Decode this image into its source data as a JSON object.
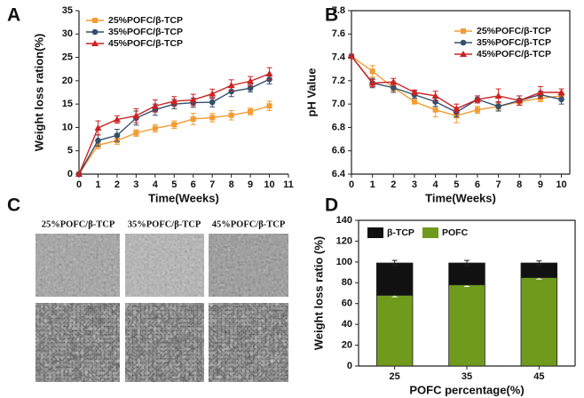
{
  "chart_data": [
    {
      "type": "line",
      "label": "A",
      "xlabel": "Time(Weeks)",
      "ylabel": "Weight loss ration(%)",
      "x": [
        0,
        1,
        2,
        3,
        4,
        5,
        6,
        7,
        8,
        9,
        10
      ],
      "xlim": [
        0,
        11
      ],
      "xticks": [
        0,
        1,
        2,
        3,
        4,
        5,
        6,
        7,
        8,
        9,
        10,
        11
      ],
      "ylim": [
        0,
        35
      ],
      "yticks": [
        0,
        5,
        10,
        15,
        20,
        25,
        30,
        35
      ],
      "legend": "upper left",
      "frame": false,
      "series": [
        {
          "name": "25%POFC/β-TCP",
          "color": "#f39c32",
          "marker": "square",
          "values": [
            0,
            6.2,
            7.2,
            8.8,
            9.8,
            10.6,
            11.8,
            12.1,
            12.6,
            13.4,
            14.6
          ],
          "errors": [
            0,
            0.8,
            0.8,
            0.7,
            0.8,
            0.8,
            1.2,
            0.9,
            1.0,
            0.7,
            1.0
          ]
        },
        {
          "name": "35%POFC/β-TCP",
          "color": "#34506e",
          "marker": "circle",
          "values": [
            0,
            7.2,
            8.3,
            12.0,
            13.8,
            15.0,
            15.3,
            15.4,
            17.7,
            18.4,
            20.3
          ],
          "errors": [
            0,
            1.2,
            1.3,
            1.5,
            1.2,
            1.0,
            1.0,
            1.0,
            1.1,
            0.8,
            1.0
          ]
        },
        {
          "name": "45%POFC/β-TCP",
          "color": "#cc2222",
          "marker": "triangle",
          "values": [
            0,
            9.9,
            11.7,
            12.5,
            14.6,
            15.6,
            15.9,
            17.2,
            19.0,
            19.9,
            21.5
          ],
          "errors": [
            0,
            1.5,
            0.8,
            1.5,
            1.3,
            1.0,
            1.2,
            1.0,
            1.2,
            1.0,
            1.3
          ]
        }
      ]
    },
    {
      "type": "line",
      "label": "B",
      "xlabel": "Time(Weeks)",
      "ylabel": "pH Value",
      "x": [
        0,
        1,
        2,
        3,
        4,
        5,
        6,
        7,
        8,
        9,
        10
      ],
      "xlim": [
        0,
        10.4
      ],
      "xticks": [
        0,
        1,
        2,
        3,
        4,
        5,
        6,
        7,
        8,
        9,
        10
      ],
      "ylim": [
        6.4,
        7.8
      ],
      "yticks": [
        6.4,
        6.6,
        6.8,
        {
          "value": 7,
          "label": "7.0"
        },
        7.2,
        7.4,
        7.6,
        7.8
      ],
      "legend": "upper right",
      "frame": true,
      "series": [
        {
          "name": "25%POFC/β-TCP",
          "color": "#f39c32",
          "marker": "square",
          "values": [
            7.41,
            7.28,
            7.14,
            7.02,
            6.95,
            6.9,
            6.95,
            6.98,
            7.02,
            7.05,
            7.07
          ],
          "errors": [
            0,
            0.05,
            0.03,
            0.02,
            0.06,
            0.06,
            0.03,
            0.03,
            0.03,
            0.03,
            0.02
          ]
        },
        {
          "name": "35%POFC/β-TCP",
          "color": "#34506e",
          "marker": "circle",
          "values": [
            7.41,
            7.18,
            7.14,
            7.08,
            7.02,
            6.93,
            7.04,
            6.98,
            7.03,
            7.08,
            7.04
          ],
          "errors": [
            0,
            0.04,
            0.04,
            0.03,
            0.04,
            0.04,
            0.03,
            0.04,
            0.04,
            0.03,
            0.04
          ]
        },
        {
          "name": "45%POFC/β-TCP",
          "color": "#cc2222",
          "marker": "triangle",
          "values": [
            7.41,
            7.18,
            7.19,
            7.1,
            7.07,
            6.96,
            7.04,
            7.07,
            7.03,
            7.1,
            7.1
          ],
          "errors": [
            0,
            0.03,
            0.03,
            0.02,
            0.04,
            0.04,
            0.03,
            0.06,
            0.04,
            0.05,
            0.03
          ]
        }
      ]
    },
    {
      "type": "stacked_bar",
      "label": "D",
      "xlabel": "POFC percentage(%)",
      "ylabel": "Weight loss ratio (%)",
      "categories": [
        "25",
        "35",
        "45"
      ],
      "ylim": [
        0,
        140
      ],
      "yticks": [
        0,
        20,
        40,
        60,
        80,
        100,
        120,
        140
      ],
      "legend": "upper left",
      "frame": true,
      "series": [
        {
          "name": "POFC",
          "color": "#6f9a1c",
          "values": [
            68,
            78,
            85
          ],
          "errors": [
            1.5,
            1.5,
            1.5
          ]
        },
        {
          "name": "β-TCP",
          "color": "#111111",
          "values": [
            31,
            21,
            14
          ],
          "errors": [
            2.5,
            2.5,
            2
          ]
        }
      ]
    }
  ],
  "sem_panel": {
    "label": "C",
    "columns": [
      "25%POFC/β-TCP",
      "35%POFC/β-TCP",
      "45%POFC/β-TCP"
    ]
  }
}
